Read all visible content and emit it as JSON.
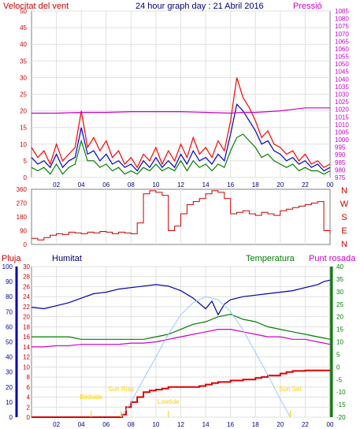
{
  "titles": {
    "wind_speed": "Velocitat del vent",
    "graph": "24 hour graph day : 21 Abril 2016",
    "pressure": "Pressió",
    "rain": "Pluja",
    "humidity": "Humitat",
    "temperature": "Temperatura",
    "dewpoint": "Punt rosada"
  },
  "colors": {
    "wind_speed": "#ff0000",
    "gust": "#ff0000",
    "avg_wind": "#0000cc",
    "low_wind": "#008000",
    "pressure": "#cc00cc",
    "direction": "#cc0000",
    "rain": "#dd0000",
    "humidity": "#0000aa",
    "temperature": "#008000",
    "dewpoint": "#cc00cc",
    "sun": "#99ccff",
    "event": "#ffcc00",
    "axis_left": "#cc0000",
    "axis_hum": "#0000aa",
    "axis_temp": "#008000",
    "axis_press": "#cc00cc",
    "x_labels": "#000080"
  },
  "x_tick_labels": [
    "02",
    "04",
    "06",
    "08",
    "10",
    "12",
    "14",
    "16",
    "18",
    "20",
    "22",
    "00"
  ],
  "direction_letters": [
    "N",
    "W",
    "S",
    "E",
    "N"
  ],
  "events": [
    {
      "label": "Birdside",
      "hour": 4.8
    },
    {
      "label": "Sun Rise",
      "hour": 7.2
    },
    {
      "label": "Lowtide",
      "hour": 11.0
    },
    {
      "label": "Sun Set",
      "hour": 20.8
    }
  ],
  "chart_data": [
    {
      "type": "line",
      "name": "wind_pressure",
      "x_range_hours": [
        0,
        24
      ],
      "y_left": {
        "range": [
          0,
          50
        ],
        "ticks": [
          0,
          5,
          10,
          15,
          20,
          25,
          30,
          35,
          40,
          45,
          50
        ]
      },
      "y_right": {
        "range": [
          975,
          1085
        ],
        "ticks": [
          975,
          980,
          985,
          990,
          995,
          1000,
          1005,
          1010,
          1015,
          1020,
          1025,
          1030,
          1035,
          1040,
          1045,
          1050,
          1055,
          1060,
          1065,
          1070,
          1075,
          1080,
          1085
        ]
      },
      "series": [
        {
          "key": "gust",
          "axis": "left",
          "x": [
            0,
            0.5,
            1,
            1.5,
            2,
            2.5,
            3,
            3.5,
            4,
            4.5,
            5,
            5.5,
            6,
            6.5,
            7,
            7.5,
            8,
            8.5,
            9,
            9.5,
            10,
            10.5,
            11,
            11.5,
            12,
            12.5,
            13,
            13.5,
            14,
            14.5,
            15,
            15.5,
            16,
            16.5,
            17,
            17.5,
            18,
            18.5,
            19,
            19.5,
            20,
            20.5,
            21,
            21.5,
            22,
            22.5,
            23,
            23.5,
            24
          ],
          "values": [
            9,
            6,
            8,
            4,
            10,
            5,
            7,
            9,
            20,
            9,
            12,
            8,
            11,
            6,
            8,
            4,
            6,
            3,
            7,
            5,
            9,
            4,
            8,
            5,
            10,
            6,
            12,
            7,
            9,
            6,
            11,
            8,
            17,
            30,
            24,
            21,
            17,
            12,
            14,
            10,
            9,
            7,
            8,
            5,
            7,
            4,
            5,
            3,
            4
          ]
        },
        {
          "key": "avg_wind",
          "axis": "left",
          "x": [
            0,
            0.5,
            1,
            1.5,
            2,
            2.5,
            3,
            3.5,
            4,
            4.5,
            5,
            5.5,
            6,
            6.5,
            7,
            7.5,
            8,
            8.5,
            9,
            9.5,
            10,
            10.5,
            11,
            11.5,
            12,
            12.5,
            13,
            13.5,
            14,
            14.5,
            15,
            15.5,
            16,
            16.5,
            17,
            17.5,
            18,
            18.5,
            19,
            19.5,
            20,
            20.5,
            21,
            21.5,
            22,
            22.5,
            23,
            23.5,
            24
          ],
          "values": [
            6,
            4,
            5,
            3,
            7,
            3,
            5,
            6,
            15,
            7,
            8,
            5,
            7,
            4,
            5,
            3,
            4,
            2,
            5,
            3,
            6,
            3,
            5,
            3,
            7,
            4,
            8,
            5,
            6,
            4,
            7,
            5,
            13,
            22,
            20,
            17,
            14,
            10,
            11,
            8,
            7,
            5,
            6,
            4,
            5,
            3,
            4,
            2,
            3
          ]
        },
        {
          "key": "low_wind",
          "axis": "left",
          "x": [
            0,
            0.5,
            1,
            1.5,
            2,
            2.5,
            3,
            3.5,
            4,
            4.5,
            5,
            5.5,
            6,
            6.5,
            7,
            7.5,
            8,
            8.5,
            9,
            9.5,
            10,
            10.5,
            11,
            11.5,
            12,
            12.5,
            13,
            13.5,
            14,
            14.5,
            15,
            15.5,
            16,
            16.5,
            17,
            17.5,
            18,
            18.5,
            19,
            19.5,
            20,
            20.5,
            21,
            21.5,
            22,
            22.5,
            23,
            23.5,
            24
          ],
          "values": [
            3,
            2,
            3,
            1,
            4,
            1,
            3,
            4,
            11,
            5,
            5,
            3,
            4,
            2,
            3,
            1,
            2,
            1,
            3,
            2,
            4,
            2,
            3,
            2,
            5,
            2,
            5,
            3,
            4,
            2,
            4,
            3,
            8,
            12,
            13,
            11,
            9,
            6,
            7,
            5,
            4,
            3,
            4,
            2,
            3,
            2,
            2,
            1,
            2
          ]
        },
        {
          "key": "pressure",
          "axis": "right",
          "x": [
            0,
            2,
            4,
            6,
            8,
            10,
            12,
            14,
            16,
            17,
            18,
            19,
            20,
            21,
            22,
            23,
            24
          ],
          "values": [
            1017.5,
            1017.5,
            1018,
            1018,
            1018.5,
            1018.5,
            1018.5,
            1018,
            1017.5,
            1018,
            1018,
            1018.5,
            1019,
            1020,
            1021,
            1021,
            1021
          ]
        }
      ]
    },
    {
      "type": "line",
      "name": "wind_direction",
      "x_range_hours": [
        0,
        24
      ],
      "y_left": {
        "range": [
          0,
          360
        ],
        "ticks": [
          0,
          90,
          180,
          270,
          360
        ]
      },
      "series": [
        {
          "key": "direction",
          "x": [
            0,
            0.5,
            1,
            1.5,
            2,
            2.5,
            3,
            3.5,
            4,
            4.5,
            5,
            5.5,
            6,
            6.5,
            7,
            7.5,
            8,
            8.5,
            9,
            9.5,
            10,
            10.5,
            11,
            11.5,
            12,
            12.5,
            13,
            13.5,
            14,
            14.5,
            15,
            15.5,
            16,
            16.5,
            17,
            17.5,
            18,
            18.5,
            19,
            19.5,
            20,
            20.5,
            21,
            21.5,
            22,
            22.5,
            23,
            23.5,
            24
          ],
          "values": [
            40,
            30,
            45,
            60,
            70,
            65,
            80,
            75,
            70,
            80,
            75,
            85,
            80,
            70,
            80,
            75,
            70,
            140,
            330,
            350,
            340,
            320,
            90,
            120,
            200,
            260,
            280,
            300,
            330,
            350,
            340,
            300,
            200,
            210,
            220,
            200,
            190,
            210,
            200,
            190,
            220,
            230,
            240,
            250,
            260,
            270,
            280,
            90,
            70
          ]
        }
      ]
    },
    {
      "type": "line",
      "name": "rain_humidity_temperature",
      "x_range_hours": [
        0,
        24
      ],
      "y_left": {
        "range": [
          0,
          30
        ],
        "ticks": [
          0,
          2,
          4,
          6,
          8,
          10,
          12,
          14,
          16,
          18,
          20,
          22,
          24,
          26,
          28,
          30
        ]
      },
      "y_hum": {
        "range": [
          0,
          100
        ],
        "ticks": [
          0,
          10,
          20,
          30,
          40,
          50,
          60,
          70,
          80,
          90,
          100
        ]
      },
      "y_temp": {
        "range": [
          -20,
          40
        ],
        "ticks": [
          -20,
          -15,
          -10,
          -5,
          0,
          5,
          10,
          15,
          20,
          25,
          30,
          35,
          40
        ]
      },
      "series": [
        {
          "key": "rain",
          "axis": "left",
          "x": [
            0,
            7,
            7.3,
            7.6,
            8,
            8.5,
            9,
            9.5,
            10,
            10.5,
            11,
            12,
            13,
            13.5,
            14,
            14.5,
            15,
            16,
            17,
            18,
            18.5,
            19,
            20,
            20.5,
            21,
            22,
            23,
            24
          ],
          "values": [
            0,
            0,
            0.5,
            2,
            3,
            4,
            5,
            5.3,
            5.5,
            5.7,
            6,
            6,
            6,
            6.2,
            6.5,
            6.8,
            7,
            7.3,
            7.5,
            7.8,
            8,
            8.3,
            8.7,
            9,
            9.2,
            9.3,
            9.3,
            9.3
          ]
        },
        {
          "key": "humidity",
          "axis": "hum",
          "x": [
            0,
            1,
            2,
            3,
            4,
            5,
            6,
            7,
            8,
            9,
            10,
            11,
            12,
            13,
            14,
            14.5,
            15,
            15.5,
            16,
            17,
            18,
            19,
            20,
            21,
            22,
            23,
            23.5,
            24
          ],
          "values": [
            73,
            72,
            74,
            76,
            79,
            82,
            83,
            85,
            86,
            87,
            88,
            87,
            84,
            79,
            72,
            77,
            68,
            75,
            78,
            80,
            81,
            82,
            83,
            84,
            86,
            88,
            90,
            91
          ]
        },
        {
          "key": "temperature",
          "axis": "temp",
          "x": [
            0,
            1,
            2,
            3,
            4,
            5,
            6,
            7,
            8,
            9,
            10,
            11,
            12,
            13,
            14,
            15,
            16,
            17,
            18,
            19,
            20,
            21,
            22,
            23,
            24
          ],
          "values": [
            12,
            12,
            12,
            12,
            11,
            11,
            11,
            11,
            11,
            11,
            12,
            13,
            15,
            17,
            18,
            20,
            21,
            19,
            18,
            16,
            15,
            14,
            13,
            12,
            11
          ]
        },
        {
          "key": "dewpoint",
          "axis": "temp",
          "x": [
            0,
            1,
            2,
            3,
            4,
            5,
            6,
            7,
            8,
            9,
            10,
            11,
            12,
            13,
            14,
            15,
            16,
            17,
            18,
            19,
            20,
            21,
            22,
            23,
            24
          ],
          "values": [
            8,
            8,
            8.5,
            8.5,
            9,
            9,
            9,
            9,
            9.5,
            9.5,
            10,
            11,
            12,
            13,
            14,
            15,
            15,
            14,
            13,
            12,
            12,
            11,
            11,
            10,
            9
          ]
        },
        {
          "key": "sun",
          "axis": "hum",
          "x": [
            7.2,
            8,
            9,
            10,
            11,
            12,
            13,
            14,
            15,
            16,
            17,
            18,
            19,
            20,
            20.8
          ],
          "values": [
            0,
            10,
            25,
            40,
            55,
            68,
            76,
            80,
            78,
            70,
            58,
            43,
            28,
            12,
            0
          ]
        }
      ]
    }
  ]
}
